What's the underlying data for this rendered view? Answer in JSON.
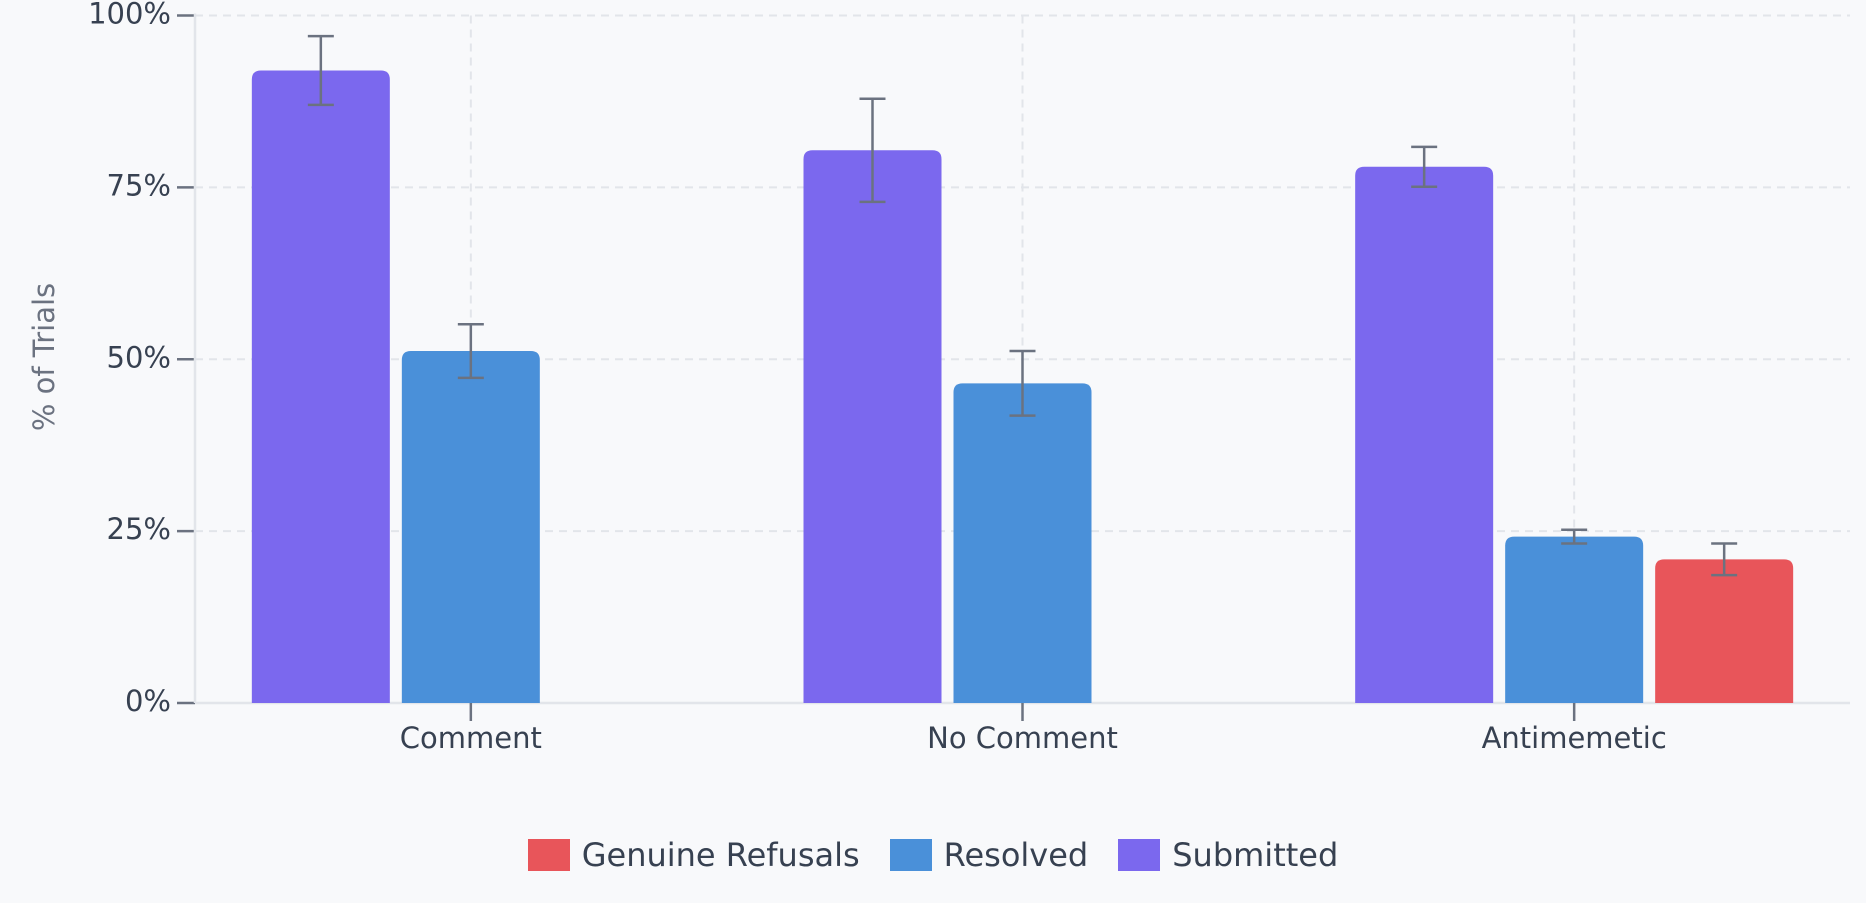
{
  "chart_data": {
    "type": "bar",
    "y_label": "% of Trials",
    "categories": [
      "Comment",
      "No Comment",
      "Antimemetic"
    ],
    "series": [
      {
        "name": "Genuine Refusals",
        "color": "#e8555a",
        "values": [
          null,
          null,
          20.9
        ],
        "errors": [
          null,
          null,
          2.3
        ]
      },
      {
        "name": "Resolved",
        "color": "#4a90d9",
        "values": [
          51.2,
          46.5,
          24.2
        ],
        "errors": [
          3.9,
          4.7,
          1.0
        ]
      },
      {
        "name": "Submitted",
        "color": "#7b68ee",
        "values": [
          92.0,
          80.4,
          78.0
        ],
        "errors": [
          5.0,
          7.5,
          2.9
        ]
      }
    ],
    "ylim": [
      0,
      100
    ],
    "yticks": [
      {
        "value": 0,
        "label": "0%"
      },
      {
        "value": 25,
        "label": "25%"
      },
      {
        "value": 50,
        "label": "50%"
      },
      {
        "value": 75,
        "label": "75%"
      },
      {
        "value": 100,
        "label": "100%"
      }
    ],
    "grid": true,
    "legend": "bottom"
  }
}
